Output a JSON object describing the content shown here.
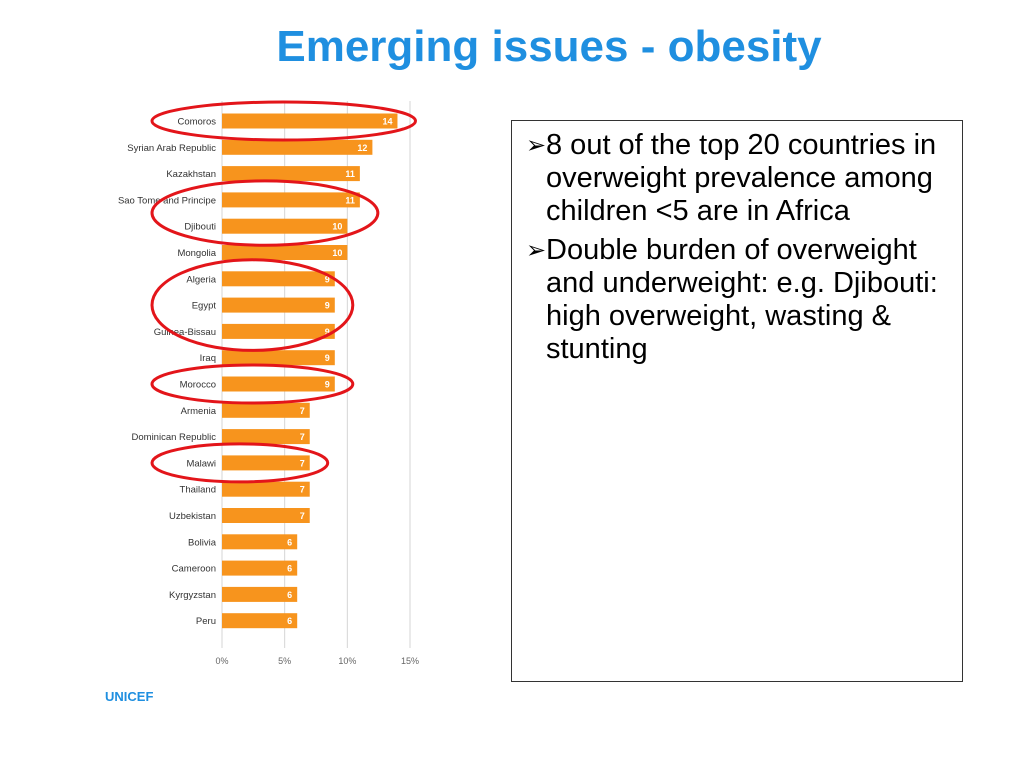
{
  "slide": {
    "title": "Emerging issues - obesity",
    "source": "UNICEF",
    "bullets": [
      "8 out of the top 20 countries in overweight prevalence among children <5 are in Africa",
      "Double burden of overweight and underweight: e.g. Djibouti: high overweight, wasting & stunting"
    ],
    "bullet_marker": "➢"
  },
  "chart_data": {
    "type": "bar",
    "orientation": "horizontal",
    "categories": [
      "Comoros",
      "Syrian Arab Republic",
      "Kazakhstan",
      "Sao Tome and Principe",
      "Djibouti",
      "Mongolia",
      "Algeria",
      "Egypt",
      "Guinea-Bissau",
      "Iraq",
      "Morocco",
      "Armenia",
      "Dominican Republic",
      "Malawi",
      "Thailand",
      "Uzbekistan",
      "Bolivia",
      "Cameroon",
      "Kyrgyzstan",
      "Peru"
    ],
    "values": [
      14,
      12,
      11,
      11,
      10,
      10,
      9,
      9,
      9,
      9,
      9,
      7,
      7,
      7,
      7,
      7,
      6,
      6,
      6,
      6
    ],
    "title": "",
    "xlabel": "",
    "ylabel": "",
    "xlim": [
      0,
      15
    ],
    "xticks": [
      "0%",
      "5%",
      "10%",
      "15%"
    ],
    "grid": true,
    "bar_color": "#f7941d",
    "highlight_color": "#e3151a",
    "highlighted_groups": [
      [
        "Comoros"
      ],
      [
        "Sao Tome and Principe",
        "Djibouti"
      ],
      [
        "Algeria",
        "Egypt",
        "Guinea-Bissau"
      ],
      [
        "Morocco"
      ],
      [
        "Malawi"
      ]
    ]
  }
}
